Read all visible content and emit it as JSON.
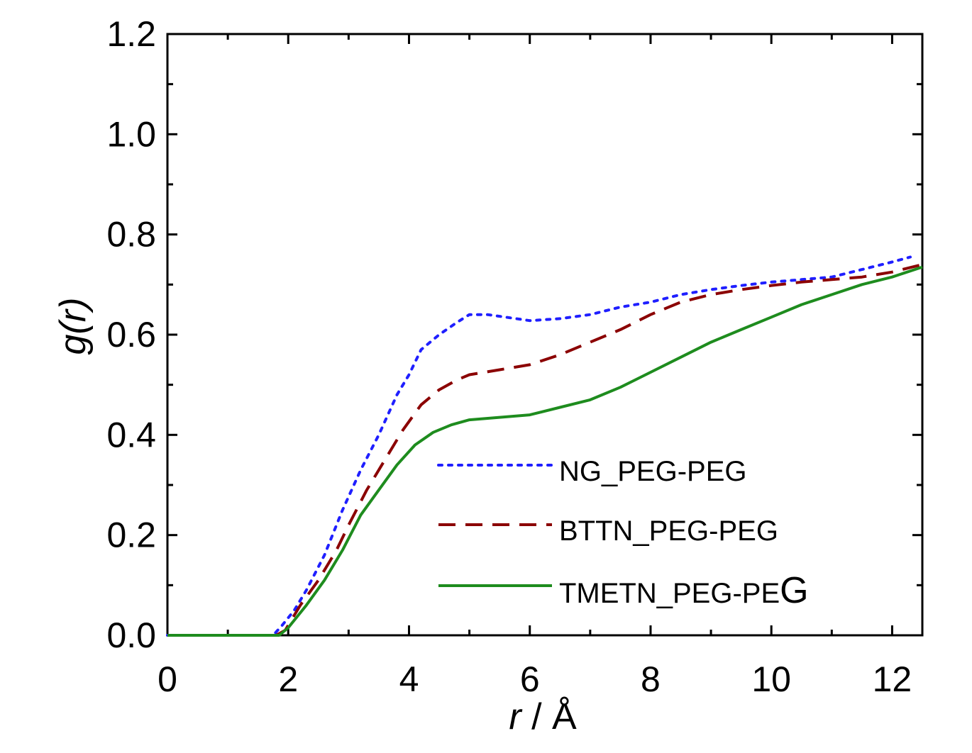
{
  "chart_data": {
    "type": "line",
    "title": "",
    "xlabel_italic": "r",
    "xlabel_rest": " / Å",
    "ylabel": "g(r)",
    "xlim": [
      0,
      12.5
    ],
    "ylim": [
      0,
      1.2
    ],
    "xticks": [
      "0",
      "2",
      "4",
      "6",
      "8",
      "10",
      "12"
    ],
    "yticks": [
      "0.0",
      "0.2",
      "0.4",
      "0.6",
      "0.8",
      "1.0",
      "1.2"
    ],
    "grid": false,
    "legend_position": "inside-lower-right",
    "series": [
      {
        "name": "NG_PEG-PEG",
        "color": "#1f1fff",
        "style": "dotted",
        "x": [
          0,
          1.75,
          1.9,
          2.1,
          2.3,
          2.6,
          2.9,
          3.2,
          3.5,
          3.8,
          4.0,
          4.2,
          4.5,
          4.8,
          5.0,
          5.3,
          5.6,
          6.0,
          6.5,
          7.0,
          7.5,
          8.0,
          8.5,
          9.0,
          9.5,
          10.0,
          10.5,
          11.0,
          11.5,
          12.0,
          12.3
        ],
        "values": [
          0,
          0,
          0.02,
          0.05,
          0.09,
          0.16,
          0.25,
          0.33,
          0.4,
          0.48,
          0.52,
          0.57,
          0.6,
          0.625,
          0.64,
          0.64,
          0.635,
          0.628,
          0.632,
          0.64,
          0.655,
          0.665,
          0.68,
          0.69,
          0.698,
          0.705,
          0.71,
          0.715,
          0.73,
          0.745,
          0.755
        ]
      },
      {
        "name": "BTTN_PEG-PEG",
        "color": "#8b0000",
        "style": "dashed",
        "x": [
          0,
          1.8,
          1.95,
          2.2,
          2.5,
          2.8,
          3.0,
          3.3,
          3.6,
          3.9,
          4.2,
          4.5,
          4.8,
          5.0,
          5.5,
          6.0,
          6.5,
          7.0,
          7.5,
          8.0,
          8.5,
          9.0,
          9.5,
          10.0,
          10.5,
          11.0,
          11.5,
          12.0,
          12.5
        ],
        "values": [
          0,
          0,
          0.01,
          0.06,
          0.11,
          0.17,
          0.22,
          0.29,
          0.35,
          0.41,
          0.46,
          0.49,
          0.51,
          0.52,
          0.53,
          0.54,
          0.56,
          0.585,
          0.61,
          0.64,
          0.665,
          0.68,
          0.69,
          0.698,
          0.705,
          0.71,
          0.715,
          0.725,
          0.74
        ]
      },
      {
        "name": "TMETN_PEG-PEG",
        "color": "#1e8c1e",
        "style": "solid",
        "x": [
          0,
          1.85,
          2.0,
          2.3,
          2.6,
          2.9,
          3.2,
          3.5,
          3.8,
          4.1,
          4.4,
          4.7,
          5.0,
          5.5,
          6.0,
          6.5,
          7.0,
          7.5,
          8.0,
          8.5,
          9.0,
          9.5,
          10.0,
          10.5,
          11.0,
          11.5,
          12.0,
          12.5
        ],
        "values": [
          0,
          0,
          0.015,
          0.06,
          0.11,
          0.17,
          0.24,
          0.29,
          0.34,
          0.38,
          0.405,
          0.42,
          0.43,
          0.435,
          0.44,
          0.455,
          0.47,
          0.495,
          0.525,
          0.555,
          0.585,
          0.61,
          0.635,
          0.66,
          0.68,
          0.7,
          0.715,
          0.735
        ]
      }
    ]
  },
  "legend": {
    "items": [
      {
        "label": "NG_PEG-PEG"
      },
      {
        "label": "BTTN_PEG-PEG"
      },
      {
        "label_main": "TMETN_PEG-PE",
        "label_tail": "G"
      }
    ]
  }
}
